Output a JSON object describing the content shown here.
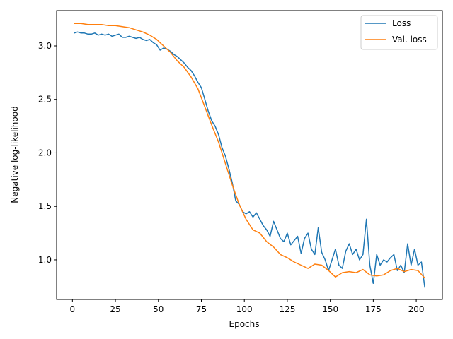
{
  "chart_data": {
    "type": "line",
    "title": "",
    "xlabel": "Epochs",
    "ylabel": "Negative log-likelihood",
    "xlim": [
      -9.2,
      215.2
    ],
    "ylim": [
      0.63,
      3.33
    ],
    "xticks": [
      0,
      25,
      50,
      75,
      100,
      125,
      150,
      175,
      200
    ],
    "yticks": [
      1.0,
      1.5,
      2.0,
      2.5,
      3.0
    ],
    "ytick_labels": [
      "1.0",
      "1.5",
      "2.0",
      "2.5",
      "3.0"
    ],
    "grid": false,
    "legend": "top-right",
    "series": [
      {
        "name": "Loss",
        "color": "#1f77b4",
        "x": [
          1,
          3,
          5,
          7,
          9,
          11,
          13,
          15,
          17,
          19,
          21,
          23,
          25,
          27,
          29,
          31,
          33,
          35,
          37,
          39,
          41,
          43,
          45,
          47,
          49,
          51,
          53,
          55,
          57,
          59,
          61,
          63,
          65,
          67,
          69,
          71,
          73,
          75,
          77,
          79,
          81,
          83,
          85,
          87,
          89,
          91,
          93,
          95,
          97,
          99,
          101,
          103,
          105,
          107,
          109,
          111,
          113,
          115,
          117,
          119,
          121,
          123,
          125,
          127,
          129,
          131,
          133,
          135,
          137,
          139,
          141,
          143,
          145,
          147,
          149,
          151,
          153,
          155,
          157,
          159,
          161,
          163,
          165,
          167,
          169,
          171,
          173,
          175,
          177,
          179,
          181,
          183,
          185,
          187,
          189,
          191,
          193,
          195,
          197,
          199,
          201,
          203,
          205
        ],
        "y": [
          3.12,
          3.13,
          3.12,
          3.12,
          3.11,
          3.11,
          3.12,
          3.1,
          3.11,
          3.1,
          3.11,
          3.09,
          3.1,
          3.11,
          3.08,
          3.08,
          3.09,
          3.08,
          3.07,
          3.08,
          3.06,
          3.05,
          3.06,
          3.03,
          3.01,
          2.96,
          2.98,
          2.97,
          2.95,
          2.92,
          2.9,
          2.87,
          2.84,
          2.8,
          2.77,
          2.72,
          2.66,
          2.61,
          2.5,
          2.39,
          2.3,
          2.25,
          2.17,
          2.05,
          1.97,
          1.85,
          1.72,
          1.55,
          1.52,
          1.45,
          1.43,
          1.45,
          1.4,
          1.44,
          1.38,
          1.32,
          1.28,
          1.22,
          1.36,
          1.28,
          1.2,
          1.17,
          1.25,
          1.14,
          1.18,
          1.22,
          1.06,
          1.2,
          1.25,
          1.1,
          1.05,
          1.3,
          1.07,
          1.0,
          0.9,
          1.0,
          1.1,
          0.95,
          0.92,
          1.08,
          1.15,
          1.05,
          1.1,
          1.0,
          1.05,
          1.38,
          0.95,
          0.78,
          1.05,
          0.95,
          1.0,
          0.98,
          1.02,
          1.05,
          0.9,
          0.95,
          0.88,
          1.15,
          0.95,
          1.1,
          0.95,
          0.98,
          0.74
        ]
      },
      {
        "name": "Val. loss",
        "color": "#ff7f0e",
        "x": [
          1,
          5,
          9,
          13,
          17,
          21,
          25,
          29,
          33,
          37,
          41,
          45,
          49,
          53,
          57,
          61,
          65,
          69,
          73,
          77,
          81,
          85,
          89,
          93,
          97,
          101,
          105,
          109,
          113,
          117,
          121,
          125,
          129,
          133,
          137,
          141,
          145,
          149,
          153,
          157,
          161,
          165,
          169,
          173,
          177,
          181,
          185,
          189,
          193,
          197,
          201,
          205
        ],
        "y": [
          3.21,
          3.21,
          3.2,
          3.2,
          3.2,
          3.19,
          3.19,
          3.18,
          3.17,
          3.15,
          3.13,
          3.1,
          3.06,
          3.0,
          2.94,
          2.86,
          2.8,
          2.71,
          2.6,
          2.43,
          2.26,
          2.1,
          1.9,
          1.7,
          1.52,
          1.38,
          1.28,
          1.25,
          1.17,
          1.12,
          1.05,
          1.02,
          0.98,
          0.95,
          0.92,
          0.96,
          0.95,
          0.9,
          0.84,
          0.88,
          0.89,
          0.88,
          0.91,
          0.86,
          0.85,
          0.86,
          0.9,
          0.92,
          0.89,
          0.91,
          0.9,
          0.83
        ]
      }
    ]
  }
}
